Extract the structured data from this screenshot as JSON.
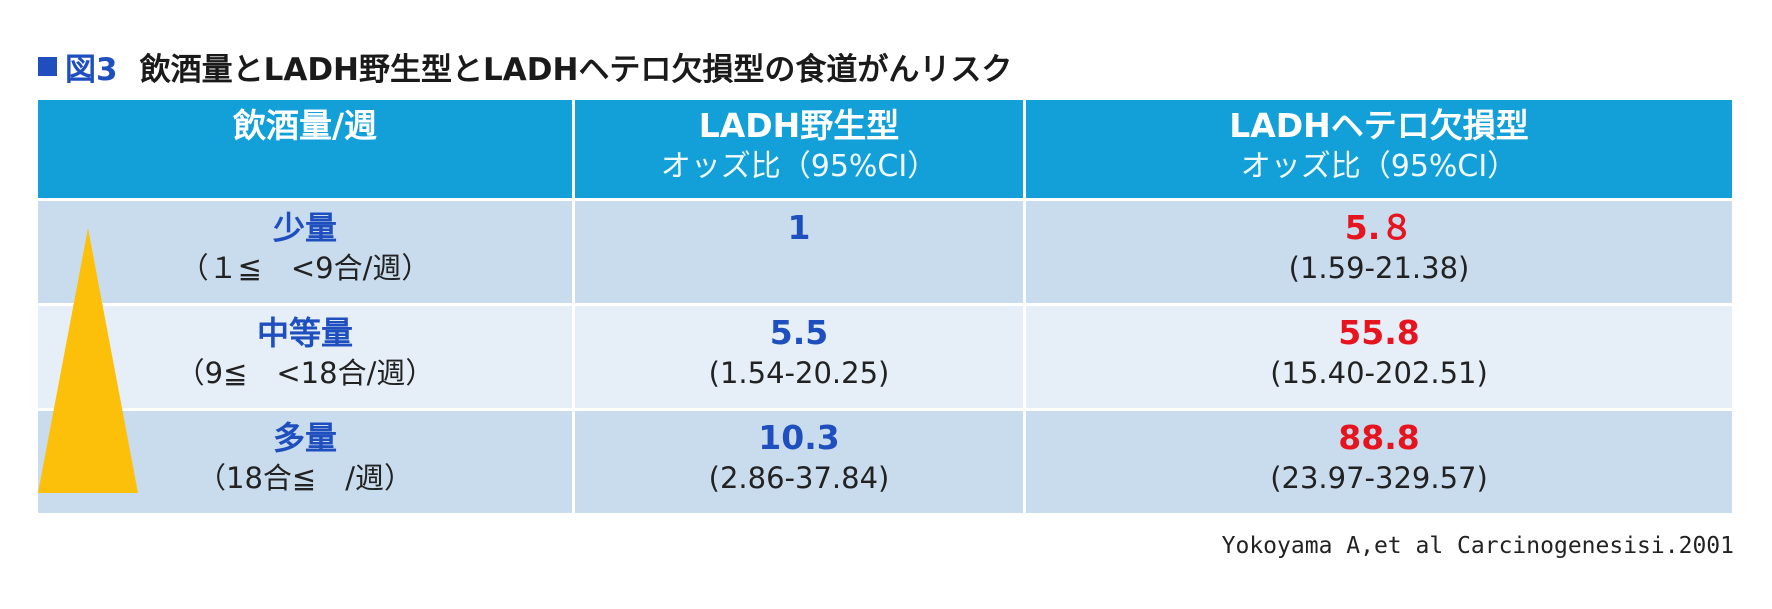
{
  "title": {
    "marker_color": "#1f4fbf",
    "figure_label": "図3",
    "text": "飲酒量とLADH野生型とLADHヘテロ欠損型の食道がんリスク"
  },
  "table": {
    "headers": [
      {
        "main": "飲酒量/週",
        "sub": ""
      },
      {
        "main": "LADH野生型",
        "sub": "オッズ比（95%CI）"
      },
      {
        "main": "LADHヘテロ欠損型",
        "sub": "オッズ比（95%CI）"
      }
    ],
    "rows": [
      {
        "level": "少量",
        "range": "（１≦　<9合/週）",
        "wild_value": "1",
        "wild_ci": "",
        "hetero_value": "5.８",
        "hetero_ci": "(1.59-21.38)"
      },
      {
        "level": "中等量",
        "range": "（9≦　<18合/週）",
        "wild_value": "5.5",
        "wild_ci": "(1.54-20.25)",
        "hetero_value": "55.8",
        "hetero_ci": "(15.40-202.51)"
      },
      {
        "level": "多量",
        "range": "（18合≦　/週）",
        "wild_value": "10.3",
        "wild_ci": "(2.86-37.84)",
        "hetero_value": "88.8",
        "hetero_ci": "(23.97-329.57)"
      }
    ]
  },
  "colors": {
    "header_bg": "#13a0d8",
    "row_dark": "#c9dcee",
    "row_light": "#e6eff8",
    "blue_text": "#1f4fbf",
    "red_text": "#e6141e",
    "triangle": "#fcc00a"
  },
  "citation": "Yokoyama A,et al Carcinogenesisi.2001"
}
